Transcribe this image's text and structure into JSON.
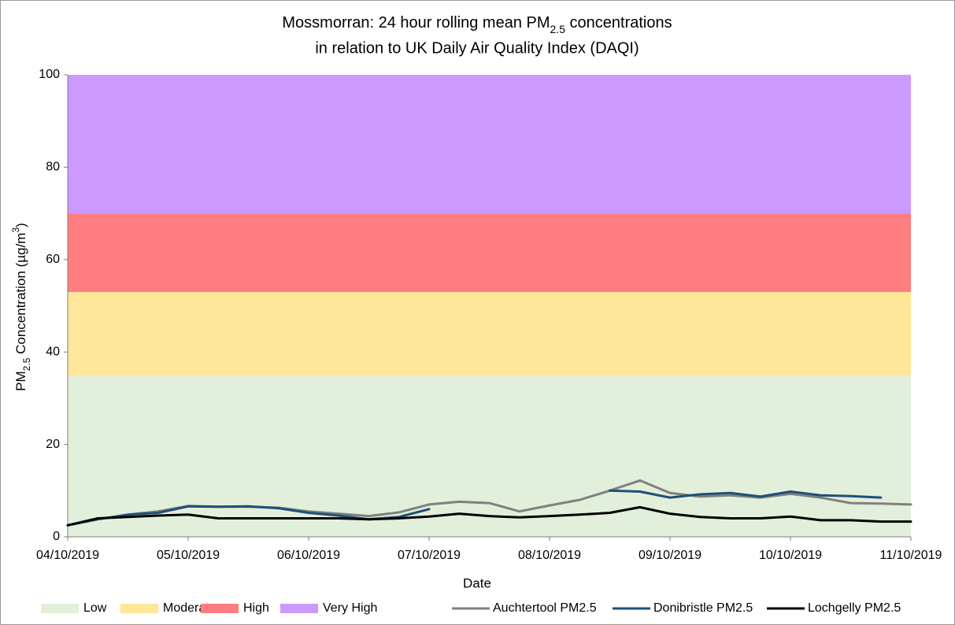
{
  "chart_data": {
    "type": "line",
    "title": [
      "Mossmorran: 24 hour rolling mean PM",
      "2.5",
      " concentrations"
    ],
    "subtitle": "in relation to UK Daily Air Quality Index (DAQI)",
    "xlabel": "Date",
    "ylabel": [
      "PM",
      "2.5",
      " Concentration (µg/m",
      "3",
      ")"
    ],
    "xlim": [
      0,
      7
    ],
    "xticks": [
      {
        "value": 0,
        "label": "04/10/2019"
      },
      {
        "value": 1,
        "label": "05/10/2019"
      },
      {
        "value": 2,
        "label": "06/10/2019"
      },
      {
        "value": 3,
        "label": "07/10/2019"
      },
      {
        "value": 4,
        "label": "08/10/2019"
      },
      {
        "value": 5,
        "label": "09/10/2019"
      },
      {
        "value": 6,
        "label": "10/10/2019"
      },
      {
        "value": 7,
        "label": "11/10/2019"
      }
    ],
    "ylim": [
      0,
      100
    ],
    "yticks": [
      0,
      20,
      40,
      60,
      80,
      100
    ],
    "grid": false,
    "legend": "bottom",
    "bands": [
      {
        "name": "Low",
        "color": "#e2efda",
        "from": 0,
        "to": 35
      },
      {
        "name": "Moderate",
        "color": "#ffe699",
        "from": 35,
        "to": 53
      },
      {
        "name": "High",
        "color": "#ff7c80",
        "from": 53,
        "to": 70
      },
      {
        "name": "Very High",
        "color": "#cc99ff",
        "from": 70,
        "to": 100
      }
    ],
    "x": [
      0,
      0.25,
      0.5,
      0.75,
      1,
      1.25,
      1.5,
      1.75,
      2,
      2.25,
      2.5,
      2.75,
      3,
      3.25,
      3.5,
      3.75,
      4,
      4.25,
      4.5,
      4.75,
      5,
      5.25,
      5.5,
      5.75,
      6,
      6.25,
      6.5,
      6.75,
      7
    ],
    "series": [
      {
        "name": "Auchtertool PM2.5",
        "color": "#808080",
        "values": [
          2.5,
          3.8,
          4.8,
          5.5,
          6.7,
          6.5,
          6.5,
          6.3,
          5.5,
          5.0,
          4.5,
          5.3,
          7.0,
          7.6,
          7.3,
          5.5,
          6.8,
          8.0,
          10.0,
          12.2,
          9.5,
          8.7,
          9.0,
          8.5,
          9.3,
          8.5,
          7.3,
          7.2,
          7.0
        ]
      },
      {
        "name": "Donibristle PM2.5",
        "color": "#1f4e79",
        "values": [
          2.5,
          3.8,
          4.8,
          5.2,
          6.6,
          6.5,
          6.6,
          6.2,
          5.2,
          4.6,
          3.8,
          4.3,
          6.0,
          null,
          null,
          null,
          null,
          null,
          10.0,
          9.8,
          8.5,
          9.2,
          9.5,
          8.7,
          9.8,
          9.0,
          8.8,
          8.5,
          null
        ]
      },
      {
        "name": "Lochgelly PM2.5",
        "color": "#000000",
        "values": [
          2.5,
          4.0,
          4.3,
          4.6,
          4.8,
          4.0,
          4.0,
          4.0,
          4.0,
          4.0,
          3.8,
          4.0,
          4.4,
          5.0,
          4.5,
          4.2,
          4.5,
          4.8,
          5.2,
          6.4,
          5.0,
          4.3,
          4.0,
          4.0,
          4.4,
          3.6,
          3.6,
          3.3,
          3.3
        ]
      }
    ]
  }
}
